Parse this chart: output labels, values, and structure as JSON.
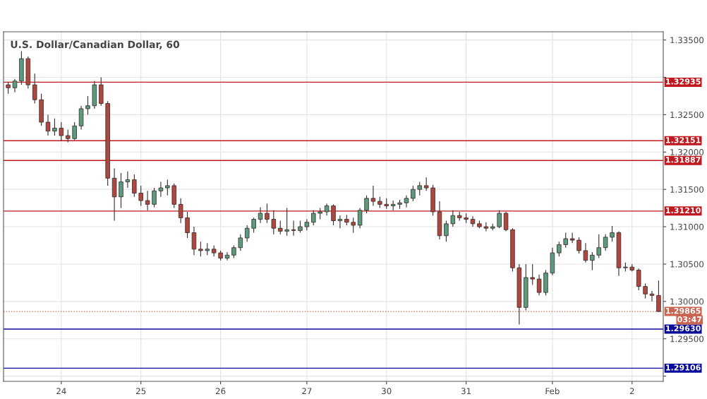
{
  "chart_data": {
    "type": "candlestick",
    "title": "U.S. Dollar/Canadian Dollar, 60",
    "categories": [
      null,
      null,
      null,
      null,
      null,
      null,
      null,
      null,
      "24",
      null,
      null,
      null,
      null,
      null,
      null,
      null,
      null,
      null,
      null,
      null,
      "25",
      null,
      null,
      null,
      null,
      null,
      null,
      null,
      null,
      null,
      null,
      null,
      "26",
      null,
      null,
      null,
      null,
      null,
      null,
      null,
      null,
      null,
      null,
      null,
      null,
      "27",
      null,
      null,
      null,
      null,
      null,
      null,
      null,
      null,
      null,
      null,
      null,
      "30",
      null,
      null,
      null,
      null,
      null,
      null,
      null,
      null,
      null,
      null,
      null,
      "31",
      null,
      null,
      null,
      null,
      null,
      null,
      null,
      null,
      null,
      null,
      null,
      null,
      "Feb",
      null,
      null,
      null,
      null,
      null,
      null,
      null,
      null,
      null,
      null,
      null,
      "2",
      null,
      null,
      null,
      null
    ],
    "ohlc": [
      [
        1.329,
        1.3294,
        1.3278,
        1.3286
      ],
      [
        1.3286,
        1.3298,
        1.328,
        1.3295
      ],
      [
        1.3295,
        1.3335,
        1.329,
        1.3325
      ],
      [
        1.3325,
        1.3328,
        1.3285,
        1.329
      ],
      [
        1.329,
        1.3305,
        1.3265,
        1.327
      ],
      [
        1.327,
        1.3278,
        1.3235,
        1.324
      ],
      [
        1.324,
        1.325,
        1.3222,
        1.3228
      ],
      [
        1.3228,
        1.3245,
        1.3222,
        1.3232
      ],
      [
        1.3232,
        1.324,
        1.3215,
        1.3222
      ],
      [
        1.3222,
        1.323,
        1.3213,
        1.3218
      ],
      [
        1.3218,
        1.324,
        1.3216,
        1.3235
      ],
      [
        1.3235,
        1.3262,
        1.323,
        1.3258
      ],
      [
        1.3258,
        1.3275,
        1.325,
        1.3262
      ],
      [
        1.3262,
        1.3295,
        1.3258,
        1.329
      ],
      [
        1.329,
        1.33,
        1.3262,
        1.3265
      ],
      [
        1.3265,
        1.3268,
        1.3155,
        1.3165
      ],
      [
        1.3165,
        1.3178,
        1.3108,
        1.314
      ],
      [
        1.314,
        1.3172,
        1.3125,
        1.316
      ],
      [
        1.316,
        1.3174,
        1.3152,
        1.3163
      ],
      [
        1.3163,
        1.317,
        1.314,
        1.3145
      ],
      [
        1.3145,
        1.3155,
        1.3128,
        1.3135
      ],
      [
        1.3135,
        1.3148,
        1.3122,
        1.313
      ],
      [
        1.313,
        1.3152,
        1.3126,
        1.3148
      ],
      [
        1.3148,
        1.316,
        1.314,
        1.3152
      ],
      [
        1.3152,
        1.3163,
        1.3142,
        1.3155
      ],
      [
        1.3155,
        1.3158,
        1.3125,
        1.313
      ],
      [
        1.313,
        1.3138,
        1.3105,
        1.3112
      ],
      [
        1.3112,
        1.312,
        1.3085,
        1.3092
      ],
      [
        1.3092,
        1.31,
        1.3062,
        1.307
      ],
      [
        1.307,
        1.308,
        1.306,
        1.3068
      ],
      [
        1.3068,
        1.3078,
        1.3062,
        1.307
      ],
      [
        1.307,
        1.3075,
        1.306,
        1.3065
      ],
      [
        1.3065,
        1.3068,
        1.3055,
        1.3058
      ],
      [
        1.3058,
        1.3066,
        1.3055,
        1.3062
      ],
      [
        1.3062,
        1.3075,
        1.3058,
        1.3072
      ],
      [
        1.3072,
        1.309,
        1.3068,
        1.3085
      ],
      [
        1.3085,
        1.3102,
        1.308,
        1.3098
      ],
      [
        1.3098,
        1.3112,
        1.3092,
        1.311
      ],
      [
        1.311,
        1.3126,
        1.3105,
        1.3118
      ],
      [
        1.3118,
        1.3131,
        1.3105,
        1.311
      ],
      [
        1.311,
        1.3122,
        1.309,
        1.3098
      ],
      [
        1.3098,
        1.3108,
        1.309,
        1.3094
      ],
      [
        1.3094,
        1.3125,
        1.3088,
        1.3096
      ],
      [
        1.3096,
        1.3108,
        1.3088,
        1.3095
      ],
      [
        1.3095,
        1.3108,
        1.3092,
        1.31
      ],
      [
        1.31,
        1.311,
        1.3095,
        1.3106
      ],
      [
        1.3106,
        1.3122,
        1.3102,
        1.3118
      ],
      [
        1.3118,
        1.3125,
        1.311,
        1.312
      ],
      [
        1.312,
        1.3131,
        1.3115,
        1.3128
      ],
      [
        1.3128,
        1.313,
        1.3102,
        1.3108
      ],
      [
        1.3108,
        1.3115,
        1.3098,
        1.311
      ],
      [
        1.311,
        1.3116,
        1.3102,
        1.3106
      ],
      [
        1.3106,
        1.3112,
        1.3092,
        1.3102
      ],
      [
        1.3102,
        1.3125,
        1.3098,
        1.3122
      ],
      [
        1.3122,
        1.3142,
        1.3118,
        1.3138
      ],
      [
        1.3138,
        1.3155,
        1.3128,
        1.3134
      ],
      [
        1.3134,
        1.314,
        1.3125,
        1.313
      ],
      [
        1.313,
        1.3138,
        1.3124,
        1.3128
      ],
      [
        1.3128,
        1.3135,
        1.3122,
        1.313
      ],
      [
        1.313,
        1.3136,
        1.3124,
        1.3132
      ],
      [
        1.3132,
        1.3142,
        1.3126,
        1.3138
      ],
      [
        1.3138,
        1.3155,
        1.3134,
        1.315
      ],
      [
        1.315,
        1.316,
        1.3142,
        1.3155
      ],
      [
        1.3155,
        1.3166,
        1.3148,
        1.3152
      ],
      [
        1.3152,
        1.3156,
        1.3115,
        1.312
      ],
      [
        1.312,
        1.3134,
        1.3083,
        1.3088
      ],
      [
        1.3088,
        1.3108,
        1.308,
        1.3104
      ],
      [
        1.3104,
        1.3122,
        1.31,
        1.3115
      ],
      [
        1.3115,
        1.312,
        1.3108,
        1.3112
      ],
      [
        1.3112,
        1.3118,
        1.3105,
        1.311
      ],
      [
        1.311,
        1.3114,
        1.31,
        1.3104
      ],
      [
        1.3104,
        1.3108,
        1.3098,
        1.31
      ],
      [
        1.31,
        1.3106,
        1.3094,
        1.3098
      ],
      [
        1.3098,
        1.3104,
        1.3095,
        1.31
      ],
      [
        1.31,
        1.3122,
        1.3098,
        1.3118
      ],
      [
        1.3118,
        1.312,
        1.3094,
        1.3096
      ],
      [
        1.3096,
        1.3098,
        1.304,
        1.3045
      ],
      [
        1.3045,
        1.305,
        1.2969,
        1.2992
      ],
      [
        1.2992,
        1.305,
        1.2988,
        1.3032
      ],
      [
        1.3032,
        1.305,
        1.3022,
        1.303
      ],
      [
        1.303,
        1.3036,
        1.3008,
        1.3012
      ],
      [
        1.3012,
        1.3042,
        1.3008,
        1.3038
      ],
      [
        1.3038,
        1.3072,
        1.3035,
        1.3065
      ],
      [
        1.3065,
        1.308,
        1.306,
        1.3076
      ],
      [
        1.3076,
        1.3092,
        1.3072,
        1.3084
      ],
      [
        1.3084,
        1.3092,
        1.3078,
        1.3082
      ],
      [
        1.3082,
        1.3086,
        1.3064,
        1.3068
      ],
      [
        1.3068,
        1.3078,
        1.3052,
        1.3055
      ],
      [
        1.3055,
        1.3066,
        1.3042,
        1.3062
      ],
      [
        1.3062,
        1.309,
        1.3058,
        1.3072
      ],
      [
        1.3072,
        1.309,
        1.3068,
        1.3086
      ],
      [
        1.3086,
        1.3101,
        1.308,
        1.3092
      ],
      [
        1.3092,
        1.3094,
        1.3034,
        1.3045
      ],
      [
        1.3045,
        1.3052,
        1.304,
        1.3046
      ],
      [
        1.3046,
        1.305,
        1.304,
        1.3042
      ],
      [
        1.3042,
        1.3044,
        1.3015,
        1.302
      ],
      [
        1.302,
        1.3024,
        1.3004,
        1.301
      ],
      [
        1.301,
        1.3014,
        1.3,
        1.3008
      ],
      [
        1.3008,
        1.3028,
        1.2986,
        1.29865
      ]
    ],
    "ylim": [
      1.2893,
      1.3361
    ],
    "yticks": [
      {
        "value": 1.29,
        "label": null
      },
      {
        "value": 1.295,
        "label": "1.29500"
      },
      {
        "value": 1.3,
        "label": "1.30000"
      },
      {
        "value": 1.305,
        "label": "1.30500"
      },
      {
        "value": 1.31,
        "label": "1.31000"
      },
      {
        "value": 1.315,
        "label": "1.31500"
      },
      {
        "value": 1.32,
        "label": "1.32000"
      },
      {
        "value": 1.325,
        "label": "1.32500"
      },
      {
        "value": 1.33,
        "label": null
      },
      {
        "value": 1.335,
        "label": "1.33500"
      }
    ],
    "grid": true,
    "ref_lines": [
      {
        "axis": "y",
        "value": 1.32935,
        "label": "1.32935",
        "color": "#c0181f"
      },
      {
        "axis": "y",
        "value": 1.32151,
        "label": "1.32151",
        "color": "#c0181f"
      },
      {
        "axis": "y",
        "value": 1.31887,
        "label": "1.31887",
        "color": "#c0181f"
      },
      {
        "axis": "y",
        "value": 1.3121,
        "label": "1.31210",
        "color": "#c0181f"
      },
      {
        "axis": "y",
        "value": 1.29865,
        "label": "1.29865",
        "color": "#c8644f",
        "line_style": "dotted"
      },
      {
        "axis": "y",
        "value": 1.2963,
        "label": "1.29630",
        "color": "#0a0a9a"
      },
      {
        "axis": "y",
        "value": 1.29106,
        "label": "1.29106",
        "color": "#0a0a9a"
      }
    ],
    "annotations": [
      "03:47"
    ]
  }
}
